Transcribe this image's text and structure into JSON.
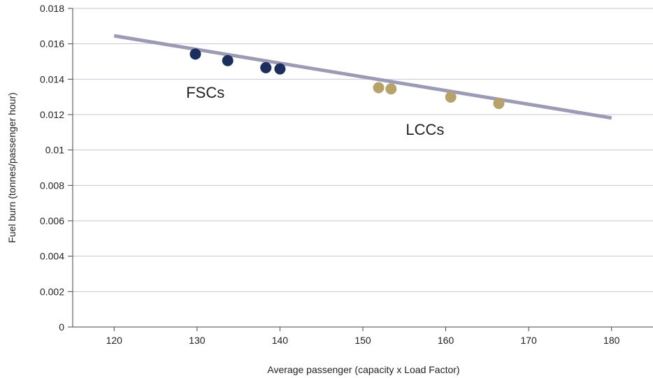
{
  "chart_data": {
    "type": "scatter",
    "xlabel": "Average passenger (capacity x Load Factor)",
    "ylabel": "Fuel burn (tonnes/passenger hour)",
    "xlim": [
      115,
      185
    ],
    "ylim": [
      0,
      0.018
    ],
    "x_ticks": [
      120,
      130,
      140,
      150,
      160,
      170,
      180
    ],
    "x_tick_labels": [
      "120",
      "130",
      "140",
      "150",
      "160",
      "170",
      "180"
    ],
    "y_ticks": [
      0,
      0.002,
      0.004,
      0.006,
      0.008,
      0.01,
      0.012,
      0.014,
      0.016,
      0.018
    ],
    "y_tick_labels": [
      "0",
      "0.002",
      "0.004",
      "0.006",
      "0.008",
      "0.01",
      "0.012",
      "0.014",
      "0.016",
      "0.018"
    ],
    "grid": "horizontal",
    "series": [
      {
        "color": "#1c2f5c",
        "points": [
          {
            "x": 129.8,
            "y": 0.01542
          },
          {
            "x": 133.7,
            "y": 0.01505
          },
          {
            "x": 138.3,
            "y": 0.01465
          },
          {
            "x": 140.0,
            "y": 0.01458
          }
        ]
      },
      {
        "color": "#b7a36a",
        "points": [
          {
            "x": 151.9,
            "y": 0.01352
          },
          {
            "x": 153.4,
            "y": 0.01345
          },
          {
            "x": 160.6,
            "y": 0.01299
          },
          {
            "x": 166.4,
            "y": 0.01263
          }
        ]
      }
    ],
    "trendline": {
      "color": "#9c9bb5",
      "points": [
        {
          "x": 120,
          "y": 0.01645
        },
        {
          "x": 180,
          "y": 0.01181
        }
      ]
    },
    "annotations": [
      {
        "text": "FSCs",
        "x": 131.0,
        "y": 0.01295
      },
      {
        "text": "LCCs",
        "x": 157.5,
        "y": 0.01085
      }
    ],
    "colors": {
      "grid": "#c4c4d8",
      "axis": "#444444"
    }
  }
}
